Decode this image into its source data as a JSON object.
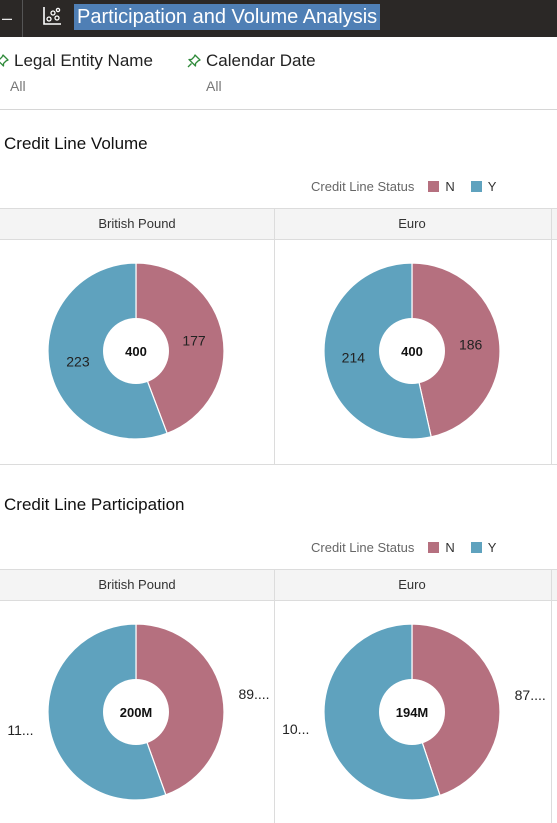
{
  "header": {
    "title": "Participation and Volume Analysis",
    "menu_glyph": "–",
    "icon": "scatter-chart-icon"
  },
  "filters": [
    {
      "label": "Legal Entity Name",
      "value": "All",
      "icon": "pin-icon"
    },
    {
      "label": "Calendar Date",
      "value": "All",
      "icon": "pin-icon"
    }
  ],
  "colors": {
    "N": "#b5707f",
    "Y": "#5fa2be",
    "topbar": "#2b2826",
    "title_highlight": "#4f7fb5"
  },
  "sections": [
    {
      "title": "Credit Line Volume",
      "legend": {
        "title": "Credit Line Status",
        "items": [
          "N",
          "Y"
        ]
      },
      "columns": [
        "British Pound",
        "Euro"
      ]
    },
    {
      "title": "Credit Line Participation",
      "legend": {
        "title": "Credit Line Status",
        "items": [
          "N",
          "Y"
        ]
      },
      "columns": [
        "British Pound",
        "Euro"
      ]
    }
  ],
  "chart_data": [
    {
      "type": "pie",
      "title": "",
      "category": "British Pound",
      "center_label": "400",
      "series": [
        {
          "name": "N",
          "value": 177,
          "label": "177"
        },
        {
          "name": "Y",
          "value": 223,
          "label": "223"
        }
      ]
    },
    {
      "type": "pie",
      "title": "",
      "category": "Euro",
      "center_label": "400",
      "series": [
        {
          "name": "N",
          "value": 186,
          "label": "186"
        },
        {
          "name": "Y",
          "value": 214,
          "label": "214"
        }
      ]
    },
    {
      "type": "pie",
      "title": "",
      "category": "British Pound",
      "center_label": "200M",
      "series": [
        {
          "name": "N",
          "value": 89,
          "label": "89...."
        },
        {
          "name": "Y",
          "value": 111,
          "label": "11..."
        }
      ]
    },
    {
      "type": "pie",
      "title": "",
      "category": "Euro",
      "center_label": "194M",
      "series": [
        {
          "name": "N",
          "value": 87,
          "label": "87...."
        },
        {
          "name": "Y",
          "value": 107,
          "label": "10..."
        }
      ]
    }
  ]
}
